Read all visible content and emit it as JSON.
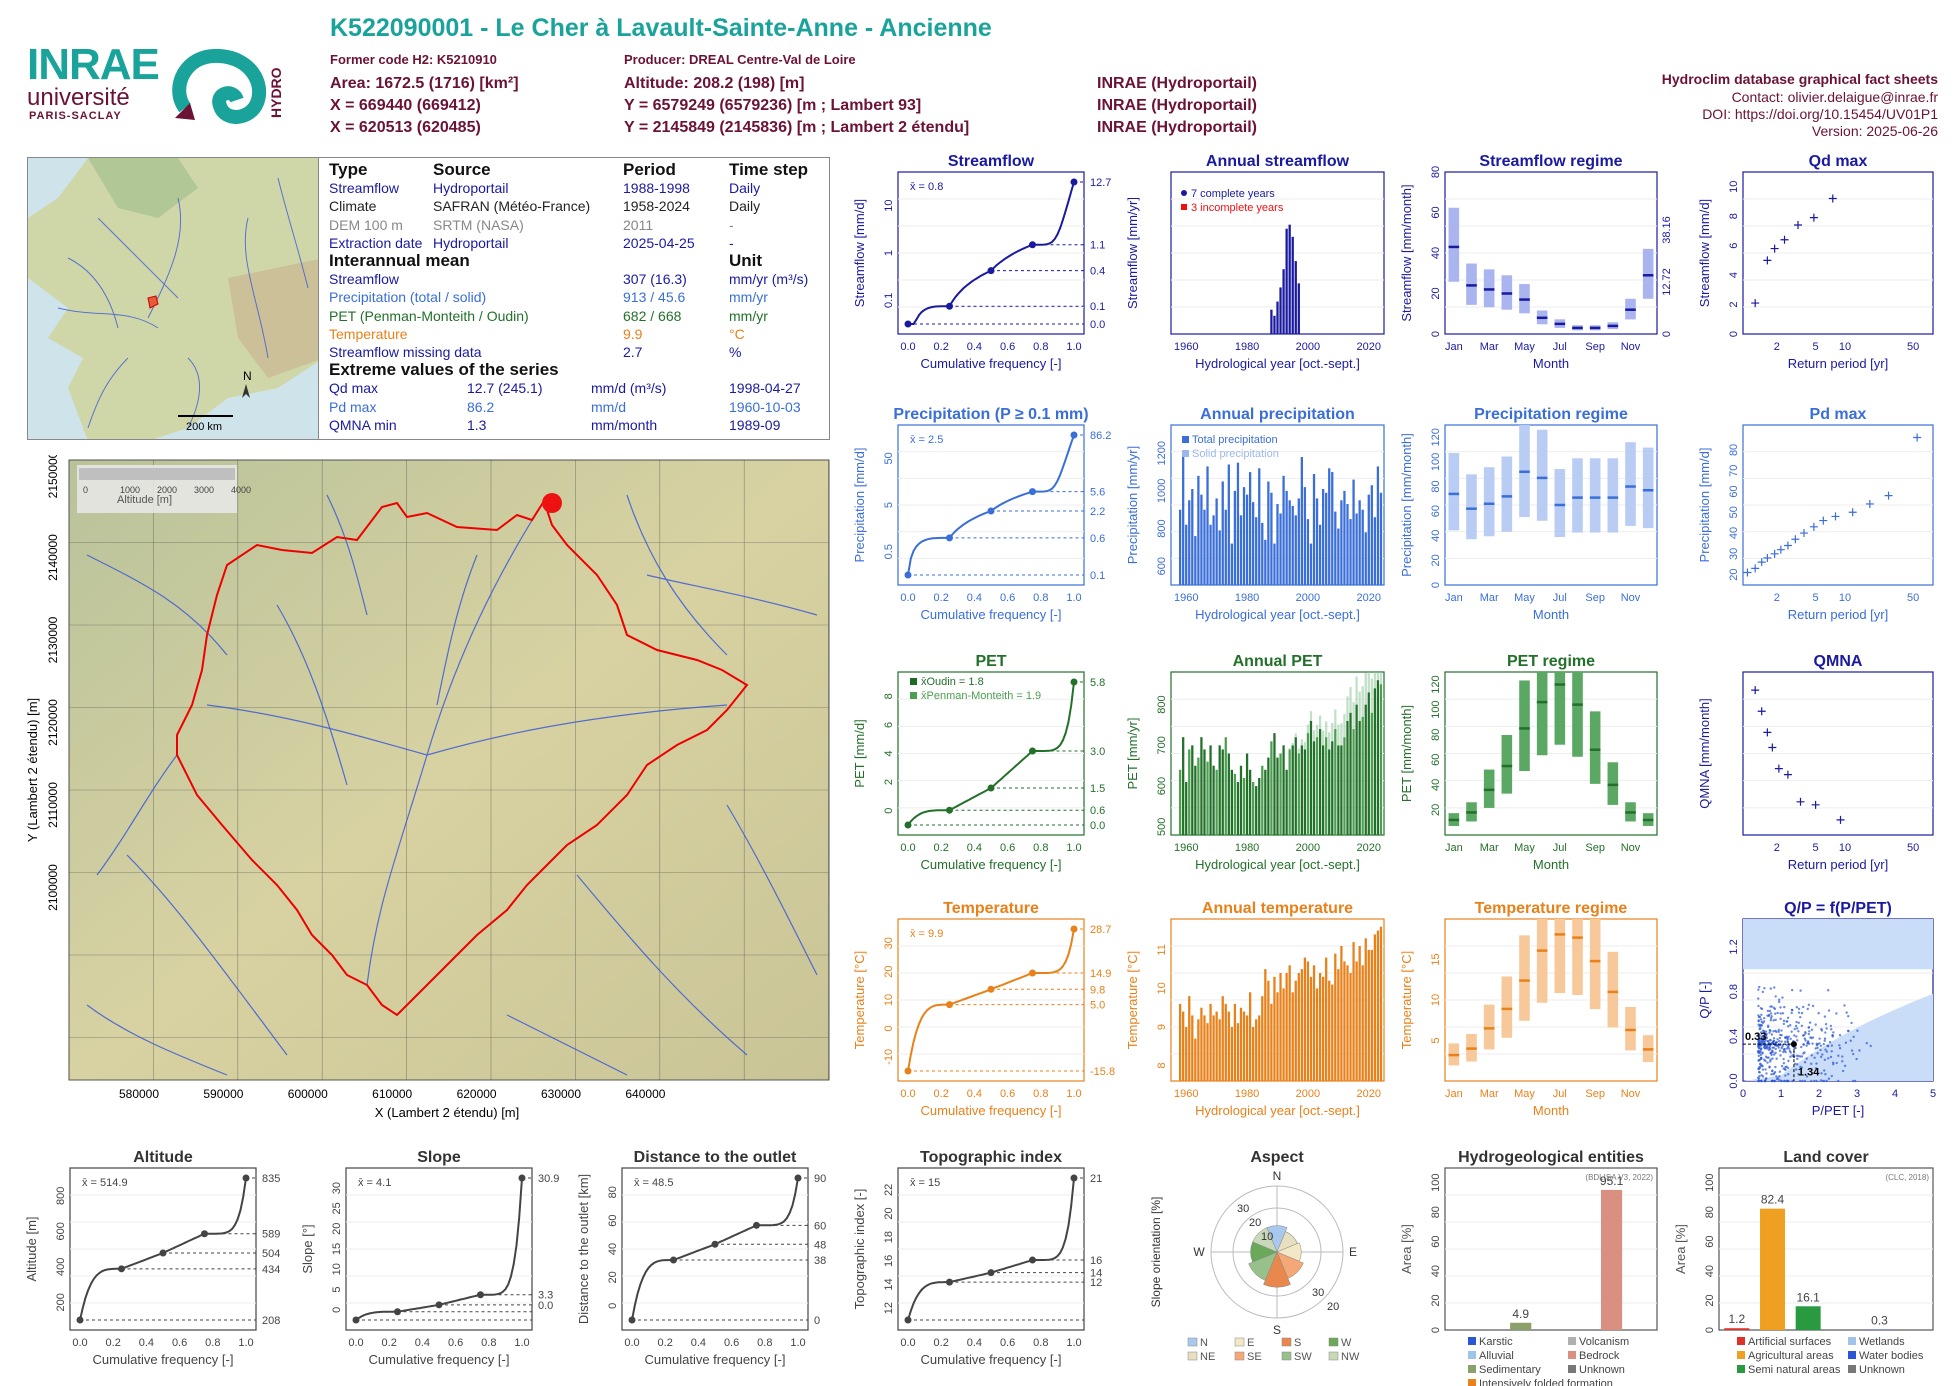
{
  "header": {
    "title": "K522090001 - Le Cher à Lavault-Sainte-Anne - Ancienne",
    "former_code": "Former code H2: K5210910",
    "producer": "Producer: DREAL Centre-Val de Loire",
    "area": "Area: 1672.5 (1716) [km²]",
    "altitude": "Altitude: 208.2 (198) [m]",
    "x1": "X = 669440 (669412)",
    "y1": "Y = 6579249 (6579236) [m ; Lambert 93]",
    "x2": "X = 620513 (620485)",
    "y2": "Y = 2145849 (2145836) [m ; Lambert 2 étendu]",
    "src1": "INRAE (Hydroportail)",
    "src2": "INRAE (Hydroportail)",
    "src3": "INRAE (Hydroportail)",
    "db_title": "Hydroclim database graphical fact sheets",
    "contact": "Contact: olivier.delaigue@inrae.fr",
    "doi": "DOI: https://doi.org/10.15454/UV01P1",
    "version": "Version: 2025-06-26"
  },
  "logos": {
    "inrae": "INRAE",
    "universite": "université",
    "paris_saclay": "PARIS-SACLAY",
    "hydro": "HYDRO"
  },
  "colors": {
    "streamflow": "#1a1aa0",
    "precip": "#3a6ed8",
    "pet": "#23702a",
    "temp": "#e8811a",
    "teal": "#1aa39b",
    "maroon": "#6b1236"
  },
  "info_table": {
    "headers": [
      "Type",
      "Source",
      "Period",
      "Time step"
    ],
    "rows": [
      {
        "type": "Streamflow",
        "source": "Hydroportail",
        "period": "1988-1998",
        "step": "Daily"
      },
      {
        "type": "Climate",
        "source": "SAFRAN (Météo-France)",
        "period": "1958-2024",
        "step": "Daily"
      },
      {
        "type": "DEM 100 m",
        "source": "SRTM (NASA)",
        "period": "2011",
        "step": "-"
      },
      {
        "type": "Extraction date",
        "source": "Hydroportail",
        "period": "2025-04-25",
        "step": "-"
      }
    ],
    "interannual_title": "Interannual mean",
    "unit_title": "Unit",
    "interannual": [
      {
        "label": "Streamflow",
        "value": "307 (16.3)",
        "unit": "mm/yr (m³/s)"
      },
      {
        "label": "Precipitation (total / solid)",
        "value": "913 / 45.6",
        "unit": "mm/yr"
      },
      {
        "label": "PET (Penman-Monteith / Oudin)",
        "value": "682 / 668",
        "unit": "mm/yr"
      },
      {
        "label": "Temperature",
        "value": "9.9",
        "unit": "°C"
      },
      {
        "label": "Streamflow missing data",
        "value": "2.7",
        "unit": "%"
      }
    ],
    "extreme_title": "Extreme values of the series",
    "extremes": [
      {
        "label": "Qd max",
        "value": "12.7 (245.1)",
        "unit": "mm/d (m³/s)",
        "date": "1998-04-27"
      },
      {
        "label": "Pd max",
        "value": "86.2",
        "unit": "mm/d",
        "date": "1960-10-03"
      },
      {
        "label": "QMNA min",
        "value": "1.3",
        "unit": "mm/month",
        "date": "1989-09"
      }
    ]
  },
  "overview_map": {
    "scale": "200 km",
    "north": "N"
  },
  "basin_map": {
    "legend_title": "Altitude [m]",
    "legend_ticks": [
      "0",
      "1000",
      "2000",
      "3000",
      "4000"
    ],
    "xlabel": "X (Lambert 2 étendu) [m]",
    "ylabel": "Y (Lambert 2 étendu) [m]",
    "xticks": [
      "580000",
      "590000",
      "600000",
      "610000",
      "620000",
      "630000",
      "640000"
    ],
    "yticks": [
      "2150000",
      "2140000",
      "2130000",
      "2120000",
      "2110000",
      "2100000"
    ]
  },
  "chart_data": [
    {
      "id": "streamflow_fdc",
      "type": "line",
      "title": "Streamflow",
      "xlabel": "Cumulative frequency [-]",
      "ylabel": "Streamflow [mm/d]",
      "mean_label": "x̄ = 0.8",
      "x": [
        0,
        0.25,
        0.5,
        0.75,
        1.0
      ],
      "y": [
        0.0,
        0.1,
        0.4,
        1.1,
        12.7
      ],
      "right_labels": [
        "12.7",
        "1.1",
        "0.4",
        "0.1",
        "0.0"
      ],
      "yticks": [
        "0.1",
        "1",
        "10"
      ]
    },
    {
      "id": "annual_streamflow",
      "type": "bar",
      "title": "Annual streamflow",
      "xlabel": "Hydrological year [oct.-sept.]",
      "ylabel": "Streamflow [mm/yr]",
      "legend": [
        "7 complete years",
        "3 incomplete years"
      ],
      "xticks": [
        "1960",
        "1980",
        "2000",
        "2020"
      ],
      "x": [
        1988,
        1989,
        1990,
        1991,
        1992,
        1993,
        1994,
        1995,
        1996,
        1997
      ],
      "values": [
        120,
        90,
        160,
        230,
        320,
        520,
        540,
        480,
        360,
        250
      ]
    },
    {
      "id": "streamflow_regime",
      "type": "bar",
      "title": "Streamflow regime",
      "xlabel": "Month",
      "ylabel": "Streamflow [mm/month]",
      "ylim": [
        0,
        80
      ],
      "right_labels": [
        "38.16",
        "12.72",
        "0"
      ],
      "categories": [
        "Jan",
        "Feb",
        "Mar",
        "Apr",
        "May",
        "Jun",
        "Jul",
        "Aug",
        "Sep",
        "Oct",
        "Nov",
        "Dec"
      ],
      "values": [
        43,
        24,
        22,
        20,
        17,
        8,
        5,
        3,
        3,
        4,
        12,
        29
      ]
    },
    {
      "id": "qd_max",
      "type": "scatter",
      "title": "Qd max",
      "xlabel": "Return period [yr]",
      "ylabel": "Streamflow [mm/d]",
      "x": [
        1.2,
        1.6,
        1.9,
        2.4,
        3.3,
        4.8,
        7.5
      ],
      "y": [
        2.1,
        5.0,
        5.8,
        6.4,
        7.4,
        7.9,
        9.2
      ],
      "xticks": [
        "2",
        "5",
        "10",
        "50"
      ],
      "yticks": [
        "0",
        "2",
        "4",
        "6",
        "8",
        "10"
      ]
    },
    {
      "id": "precip_fdc",
      "type": "line",
      "title": "Precipitation (P ≥ 0.1 mm)",
      "xlabel": "Cumulative frequency [-]",
      "ylabel": "Precipitation [mm/d]",
      "mean_label": "x̄ = 2.5",
      "x": [
        0,
        0.25,
        0.5,
        0.75,
        1.0
      ],
      "y": [
        0.1,
        0.6,
        2.2,
        5.6,
        86.2
      ],
      "right_labels": [
        "86.2",
        "5.6",
        "2.2",
        "0.6",
        "0.1"
      ],
      "yticks": [
        "0.5",
        "5",
        "50"
      ]
    },
    {
      "id": "annual_precip",
      "type": "bar",
      "title": "Annual precipitation",
      "xlabel": "Hydrological year [oct.-sept.]",
      "ylabel": "Precipitation [mm/yr]",
      "legend": [
        "Total precipitation",
        "Solid precipitation"
      ],
      "xticks": [
        "1960",
        "1980",
        "2000",
        "2020"
      ],
      "yticks": [
        "600",
        "800",
        "1000",
        "1200"
      ],
      "x_range": [
        1958,
        2024
      ],
      "values": [
        900,
        1180,
        820,
        950,
        1010,
        760,
        1080,
        980,
        900,
        1130,
        820,
        870,
        960,
        790,
        1050,
        900,
        1140,
        720,
        1000,
        1150,
        870,
        1020,
        980,
        1100,
        940,
        860,
        1120,
        830,
        740,
        1050,
        990,
        720,
        930,
        880,
        1080,
        1000,
        950,
        920,
        870,
        960,
        1180,
        1020,
        850,
        720,
        1090,
        960,
        820,
        1010,
        990,
        1120,
        1100,
        890,
        800,
        950,
        1000,
        930,
        850,
        1060,
        880,
        950,
        900,
        780,
        980,
        1030,
        860,
        1130,
        990
      ]
    },
    {
      "id": "precip_regime",
      "type": "bar",
      "title": "Precipitation regime",
      "xlabel": "Month",
      "ylabel": "Precipitation [mm/month]",
      "ylim": [
        0,
        120
      ],
      "categories": [
        "Jan",
        "Feb",
        "Mar",
        "Apr",
        "May",
        "Jun",
        "Jul",
        "Aug",
        "Sep",
        "Oct",
        "Nov",
        "Dec"
      ],
      "values": [
        74,
        62,
        66,
        72,
        92,
        87,
        65,
        71,
        71,
        71,
        80,
        77
      ]
    },
    {
      "id": "pd_max",
      "type": "scatter",
      "title": "Pd max",
      "xlabel": "Return period [yr]",
      "ylabel": "Precipitation [mm/d]",
      "xticks": [
        "2",
        "5",
        "10",
        "50"
      ],
      "yticks": [
        "20",
        "30",
        "40",
        "50",
        "60",
        "70",
        "80"
      ],
      "x": [
        1.0,
        1.2,
        1.4,
        1.6,
        1.9,
        2.2,
        2.6,
        3.1,
        3.8,
        4.8,
        6.0,
        8.0,
        12.0,
        18.0,
        28.0,
        55.0
      ],
      "y": [
        21,
        23,
        26,
        28,
        30,
        32,
        34,
        37,
        40,
        43,
        46,
        48,
        50,
        54,
        58,
        86
      ]
    },
    {
      "id": "pet_fdc",
      "type": "line",
      "title": "PET",
      "xlabel": "Cumulative frequency [-]",
      "ylabel": "PET [mm/d]",
      "legend": [
        "x̄Oudin = 1.8",
        "x̄Penman-Monteith = 1.9"
      ],
      "x": [
        0,
        0.25,
        0.5,
        0.75,
        1.0
      ],
      "y": [
        0.0,
        0.6,
        1.5,
        3.0,
        5.8
      ],
      "right_labels": [
        "5.8",
        "3.0",
        "1.5",
        "0.6",
        "0.0"
      ],
      "yticks": [
        "0",
        "2",
        "4",
        "6",
        "8"
      ]
    },
    {
      "id": "annual_pet",
      "type": "bar",
      "title": "Annual PET",
      "xlabel": "Hydrological year [oct.-sept.]",
      "ylabel": "PET [mm/yr]",
      "xticks": [
        "1960",
        "1980",
        "2000",
        "2020"
      ],
      "yticks": [
        "500",
        "600",
        "700",
        "800"
      ],
      "x_range": [
        1958,
        2024
      ],
      "values": [
        640,
        720,
        610,
        690,
        700,
        650,
        670,
        720,
        690,
        660,
        700,
        650,
        640,
        700,
        690,
        720,
        680,
        640,
        630,
        610,
        650,
        620,
        680,
        640,
        610,
        600,
        620,
        650,
        640,
        670,
        710,
        730,
        670,
        680,
        700,
        640,
        690,
        700,
        720,
        680,
        700,
        690,
        730,
        760,
        710,
        720,
        740,
        700,
        720,
        690,
        710,
        740,
        700,
        700,
        720,
        760,
        780,
        740,
        800,
        760,
        770,
        800,
        830,
        780,
        840,
        860,
        850
      ]
    },
    {
      "id": "pet_regime",
      "type": "bar",
      "title": "PET regime",
      "xlabel": "Month",
      "ylabel": "PET [mm/month]",
      "ylim": [
        0,
        130
      ],
      "yticks": [
        "20",
        "40",
        "60",
        "80",
        "100",
        "120"
      ],
      "categories": [
        "Jan",
        "Feb",
        "Mar",
        "Apr",
        "May",
        "Jun",
        "Jul",
        "Aug",
        "Sep",
        "Oct",
        "Nov",
        "Dec"
      ],
      "values": [
        12,
        18,
        36,
        55,
        85,
        106,
        120,
        104,
        68,
        40,
        18,
        12
      ]
    },
    {
      "id": "qmna",
      "type": "scatter",
      "title": "QMNA",
      "xlabel": "Return period [yr]",
      "ylabel": "QMNA [mm/month]",
      "xticks": [
        "2",
        "5",
        "10",
        "50"
      ],
      "x": [
        1.2,
        1.4,
        1.6,
        1.8,
        2.1,
        2.6,
        3.5,
        5.0,
        9.0
      ],
      "y": [
        5.6,
        4.9,
        4.2,
        3.7,
        3.0,
        2.8,
        1.9,
        1.8,
        1.3
      ]
    },
    {
      "id": "temp_fdc",
      "type": "line",
      "title": "Temperature",
      "xlabel": "Cumulative frequency [-]",
      "ylabel": "Temperature [°C]",
      "mean_label": "x̄ = 9.9",
      "x": [
        0,
        0.25,
        0.5,
        0.75,
        1.0
      ],
      "y": [
        -15.8,
        5.0,
        9.8,
        14.9,
        28.7
      ],
      "right_labels": [
        "28.7",
        "14.9",
        "9.8",
        "5.0",
        "-15.8"
      ],
      "yticks": [
        "-10",
        "0",
        "10",
        "20",
        "30"
      ]
    },
    {
      "id": "annual_temp",
      "type": "bar",
      "title": "Annual temperature",
      "xlabel": "Hydrological year [oct.-sept.]",
      "ylabel": "Temperature [°C]",
      "xticks": [
        "1960",
        "1980",
        "2000",
        "2020"
      ],
      "yticks": [
        "8",
        "9",
        "10",
        "11"
      ],
      "x_range": [
        1958,
        2024
      ],
      "values": [
        9.6,
        9.4,
        9.0,
        9.8,
        9.3,
        8.7,
        9.2,
        9.5,
        9.3,
        9.1,
        9.6,
        9.3,
        9.4,
        9.2,
        9.8,
        9.6,
        9.4,
        9.0,
        9.6,
        9.1,
        9.5,
        9.4,
        9.3,
        9.9,
        9.0,
        9.2,
        9.3,
        9.8,
        10.5,
        10.2,
        9.6,
        10.3,
        9.9,
        10.4,
        10.0,
        10.4,
        10.6,
        9.9,
        10.2,
        10.4,
        10.5,
        10.8,
        10.7,
        10.3,
        10.6,
        10.0,
        10.4,
        10.3,
        10.8,
        10.2,
        10.1,
        10.9,
        10.5,
        11.1,
        10.7,
        10.6,
        10.4,
        11.2,
        10.7,
        11.1,
        10.6,
        11.3,
        11.0,
        11.0,
        11.4,
        11.5,
        11.6
      ]
    },
    {
      "id": "temp_regime",
      "type": "bar",
      "title": "Temperature regime",
      "xlabel": "Month",
      "ylabel": "Temperature [°C]",
      "yticks": [
        "5",
        "10",
        "15"
      ],
      "categories": [
        "Jan",
        "Feb",
        "Mar",
        "Apr",
        "May",
        "Jun",
        "Jul",
        "Aug",
        "Sep",
        "Oct",
        "Nov",
        "Dec"
      ],
      "values": [
        3.2,
        4.0,
        6.5,
        8.9,
        12.4,
        16.1,
        18.1,
        17.7,
        14.8,
        11.0,
        6.3,
        3.9
      ]
    },
    {
      "id": "q_p_pet",
      "type": "scatter",
      "title": "Q/P = f(P/PET)",
      "xlabel": "P/PET [-]",
      "ylabel": "Q/P [-]",
      "xticks": [
        "0",
        "1",
        "2",
        "3",
        "4",
        "5"
      ],
      "yticks": [
        "0.0",
        "0.4",
        "0.8",
        "1.2"
      ],
      "annotations": [
        "0.33",
        "1.34"
      ],
      "x": [
        1.34
      ],
      "y": [
        0.33
      ]
    },
    {
      "id": "altitude_cdf",
      "type": "line",
      "title": "Altitude",
      "xlabel": "Cumulative frequency [-]",
      "ylabel": "Altitude [m]",
      "mean_label": "x̄ = 514.9",
      "x": [
        0,
        0.25,
        0.5,
        0.75,
        1.0
      ],
      "y": [
        208,
        434,
        504,
        589,
        835
      ],
      "right_labels": [
        "835",
        "589",
        "504",
        "434",
        "208"
      ],
      "yticks": [
        "200",
        "400",
        "600",
        "800"
      ]
    },
    {
      "id": "slope_cdf",
      "type": "line",
      "title": "Slope",
      "xlabel": "Cumulative frequency [-]",
      "ylabel": "Slope [°]",
      "mean_label": "x̄ = 4.1",
      "x": [
        0,
        0.25,
        0.5,
        0.75,
        1.0
      ],
      "y": [
        0.0,
        1.8,
        3.3,
        5.5,
        30.9
      ],
      "right_labels": [
        "30.9",
        "3.3",
        "0.0"
      ],
      "yticks": [
        "0",
        "5",
        "10",
        "15",
        "20",
        "25",
        "30"
      ]
    },
    {
      "id": "distance_cdf",
      "type": "line",
      "title": "Distance to the outlet",
      "xlabel": "Cumulative frequency [-]",
      "ylabel": "Distance to the outlet [km]",
      "mean_label": "x̄ = 48.5",
      "x": [
        0,
        0.25,
        0.5,
        0.75,
        1.0
      ],
      "y": [
        0,
        38,
        48,
        60,
        90
      ],
      "right_labels": [
        "90",
        "60",
        "48",
        "38",
        "0"
      ],
      "yticks": [
        "0",
        "20",
        "40",
        "60",
        "80"
      ]
    },
    {
      "id": "topo_cdf",
      "type": "line",
      "title": "Topographic index",
      "xlabel": "Cumulative frequency [-]",
      "ylabel": "Topographic index [-]",
      "mean_label": "x̄ = 15",
      "x": [
        0,
        0.25,
        0.5,
        0.75,
        1.0
      ],
      "y": [
        12,
        14.4,
        15.0,
        15.8,
        21
      ],
      "right_labels": [
        "21",
        "16",
        "14",
        "12"
      ],
      "yticks": [
        "12",
        "14",
        "16",
        "18",
        "20",
        "22"
      ]
    },
    {
      "id": "aspect",
      "type": "pie",
      "title": "Aspect",
      "ylabel": "Slope orientation [%]",
      "rings": [
        "10",
        "20",
        "30"
      ],
      "directions": [
        "N",
        "E",
        "S",
        "W"
      ],
      "categories": [
        "N",
        "NE",
        "E",
        "SE",
        "S",
        "SW",
        "W",
        "NW"
      ],
      "values": [
        12,
        10,
        11,
        13,
        16,
        14,
        12,
        12
      ]
    },
    {
      "id": "hydrogeology",
      "type": "bar",
      "title": "Hydrogeological entities",
      "ylabel": "Area [%]",
      "source": "(BDLISA V3, 2022)",
      "yticks": [
        "0",
        "20",
        "40",
        "60",
        "80",
        "100"
      ],
      "categories": [
        "Karstic",
        "Alluvial",
        "Sedimentary",
        "Intensively folded formation",
        "Volcanism",
        "Bedrock",
        "Unknown"
      ],
      "values": [
        0,
        0,
        4.9,
        0,
        0,
        95.1,
        0
      ],
      "labels": [
        "4.9",
        "95.1"
      ]
    },
    {
      "id": "land_cover",
      "type": "bar",
      "title": "Land cover",
      "ylabel": "Area [%]",
      "source": "(CLC, 2018)",
      "yticks": [
        "0",
        "20",
        "40",
        "60",
        "80",
        "100"
      ],
      "categories": [
        "Artificial surfaces",
        "Agricultural areas",
        "Semi natural areas",
        "Wetlands",
        "Water bodies",
        "Unknown"
      ],
      "values": [
        1.2,
        82.4,
        16.1,
        0,
        0.3,
        0
      ],
      "labels": [
        "1.2",
        "82.4",
        "16.1",
        "0.3"
      ]
    }
  ]
}
